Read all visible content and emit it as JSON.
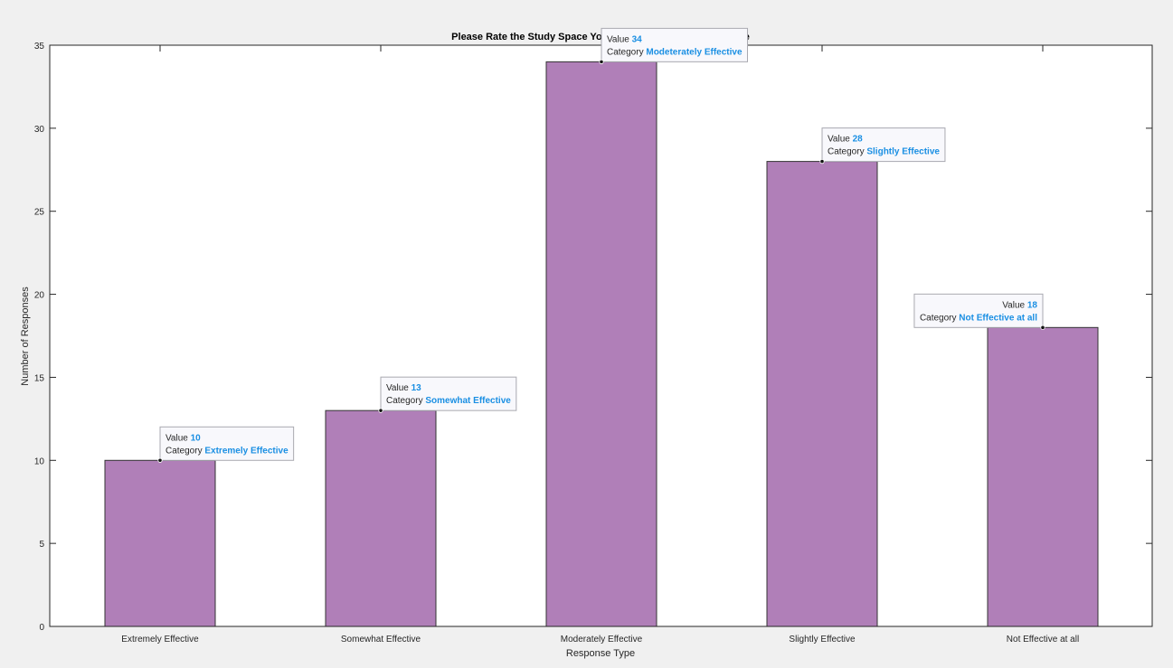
{
  "chart_data": {
    "type": "bar",
    "title": "Please Rate the Study Space You Utilize: Mt. SAC Mountie Cafe",
    "xlabel": "Response Type",
    "ylabel": "Number of Responses",
    "categories": [
      "Extremely Effective",
      "Somewhat Effective",
      "Moderately Effective",
      "Slightly Effective",
      "Not Effective at all"
    ],
    "values": [
      10,
      13,
      34,
      28,
      18
    ],
    "ylim": [
      0,
      35
    ],
    "yticks": [
      0,
      5,
      10,
      15,
      20,
      25,
      30,
      35
    ],
    "grid": false,
    "bar_color": "#b07fb8",
    "datatips": [
      {
        "value_label": "Value",
        "value": "10",
        "category_label": "Category",
        "category": "Extremely Effective",
        "index": 0,
        "side": "right"
      },
      {
        "value_label": "Value",
        "value": "13",
        "category_label": "Category",
        "category": "Somewhat Effective",
        "index": 1,
        "side": "right"
      },
      {
        "value_label": "Value",
        "value": "34",
        "category_label": "Category",
        "category": "Modeterately Effective",
        "index": 2,
        "side": "right"
      },
      {
        "value_label": "Value",
        "value": "28",
        "category_label": "Category",
        "category": "Slightly Effective",
        "index": 3,
        "side": "right"
      },
      {
        "value_label": "Value",
        "value": "18",
        "category_label": "Category",
        "category": "Not Effective at all",
        "index": 4,
        "side": "left"
      }
    ],
    "datatip_value_color": "#1a8fe3"
  }
}
